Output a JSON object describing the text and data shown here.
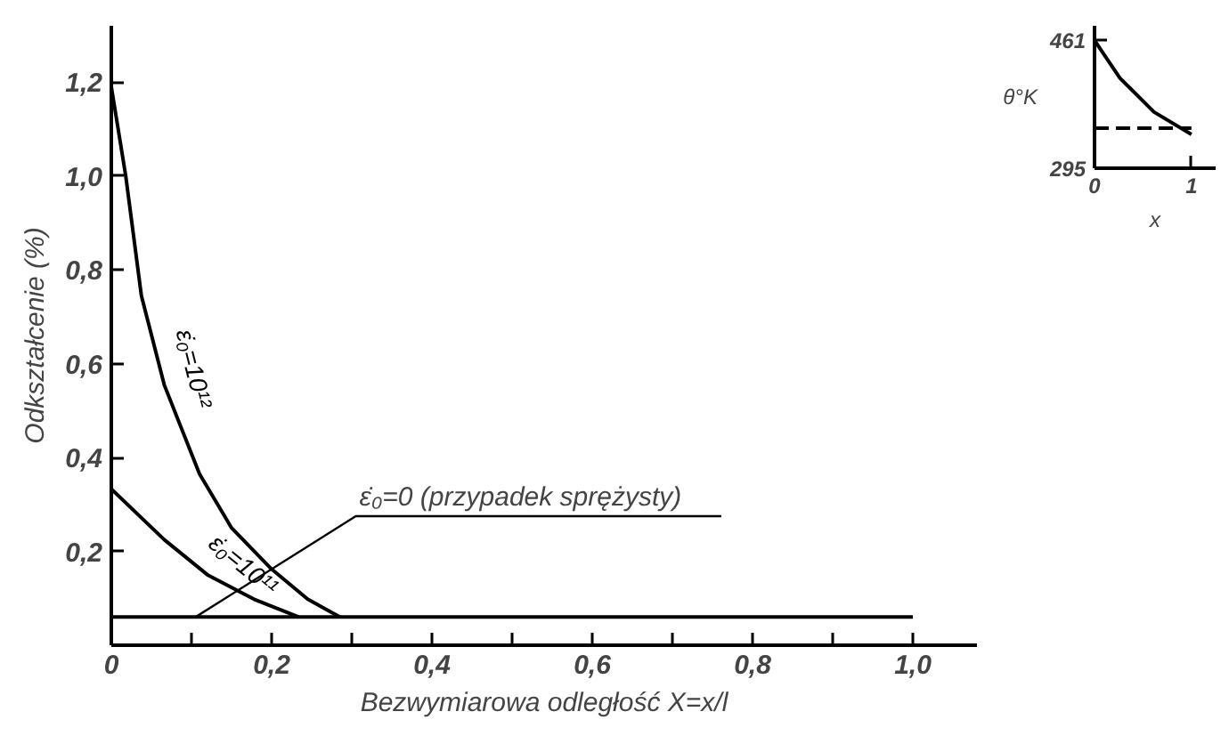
{
  "chart_data": [
    {
      "type": "line",
      "xlabel": "Bezwymiarowa odległość X=x/l",
      "ylabel": "Odkształcenie (%)",
      "xlim": [
        0,
        1.08
      ],
      "ylim": [
        0,
        1.32
      ],
      "xticks": [
        {
          "value": 0,
          "label": "0"
        },
        {
          "value": 0.1,
          "label": null
        },
        {
          "value": 0.2,
          "label": "0,2"
        },
        {
          "value": 0.3,
          "label": null
        },
        {
          "value": 0.4,
          "label": "0,4"
        },
        {
          "value": 0.5,
          "label": null
        },
        {
          "value": 0.6,
          "label": "0,6"
        },
        {
          "value": 0.7,
          "label": null
        },
        {
          "value": 0.8,
          "label": "0,8"
        },
        {
          "value": 0.9,
          "label": null
        },
        {
          "value": 1.0,
          "label": "1,0"
        }
      ],
      "yticks": [
        {
          "value": 0.2,
          "label": "0,2"
        },
        {
          "value": 0.4,
          "label": "0,4"
        },
        {
          "value": 0.6,
          "label": "0,6"
        },
        {
          "value": 0.8,
          "label": "0,8"
        },
        {
          "value": 1.0,
          "label": "1,0"
        },
        {
          "value": 1.2,
          "label": "1,2"
        }
      ],
      "series": [
        {
          "name": "ε̇₀=10¹²",
          "color": "#000000",
          "x": [
            0,
            0.018,
            0.0375,
            0.066,
            0.11,
            0.15,
            0.2,
            0.245,
            0.285
          ],
          "values": [
            1.19,
            1.0,
            0.745,
            0.555,
            0.365,
            0.25,
            0.162,
            0.098,
            0.06
          ]
        },
        {
          "name": "ε̇₀=10¹¹",
          "color": "#000000",
          "x": [
            0,
            0.066,
            0.12,
            0.178,
            0.234
          ],
          "values": [
            0.333,
            0.225,
            0.15,
            0.098,
            0.06
          ]
        },
        {
          "color": "#000000",
          "x": [
            0,
            1.0
          ],
          "values": [
            0.06,
            0.06
          ]
        }
      ],
      "annotations": [
        {
          "text": "ε̇₀=0 (przypadek sprężysty)",
          "x": 0.105,
          "y": 0.06
        }
      ],
      "grid": false,
      "marker": "none",
      "line_style": "solid"
    },
    {
      "type": "line",
      "xlabel": "x",
      "ylabel": "θ°K",
      "xlim": [
        0,
        1.25
      ],
      "ylim": [
        295,
        480
      ],
      "xticks": [
        0,
        1
      ],
      "yticks": [
        295,
        461
      ],
      "series": [
        {
          "color": "#000000",
          "x": [
            0,
            0.263,
            0.614,
            1.0
          ],
          "values": [
            461,
            412,
            368,
            339
          ]
        },
        {
          "color": "#000000",
          "x": [
            0,
            1.0
          ],
          "values": [
            347,
            347
          ],
          "line_style": "dashed"
        }
      ],
      "grid": false,
      "marker": "none",
      "line_style": "solid"
    }
  ]
}
